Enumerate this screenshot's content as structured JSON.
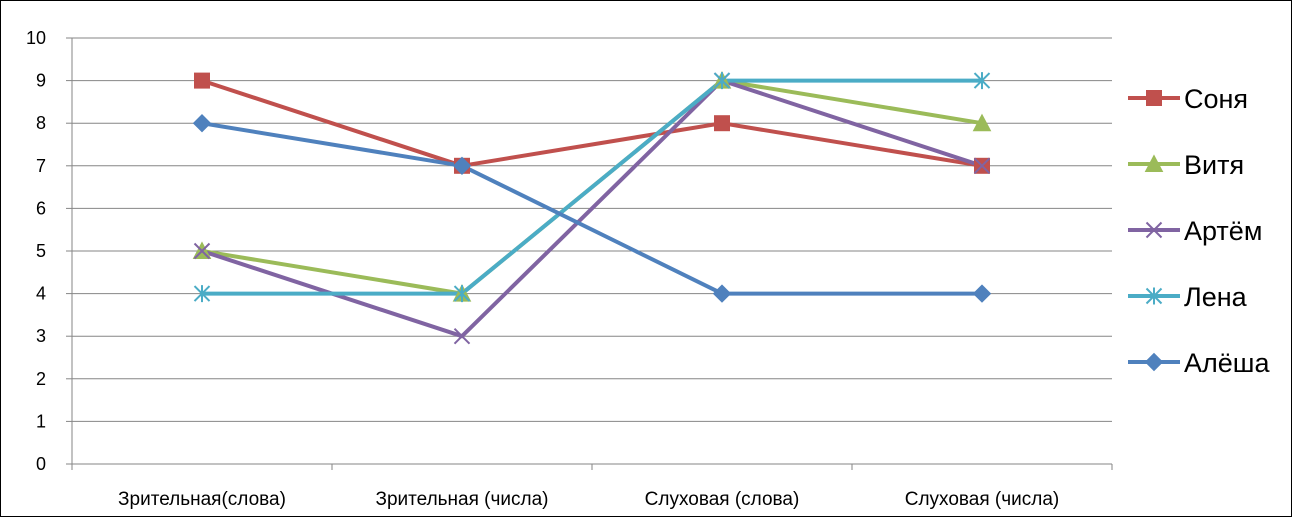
{
  "chart_data": {
    "type": "line",
    "title": "",
    "xlabel": "",
    "ylabel": "",
    "categories": [
      "Зрительная(слова)",
      "Зрительная (числа)",
      "Слуховая (слова)",
      "Слуховая (числа)"
    ],
    "ylim": [
      0,
      10
    ],
    "yticks": [
      0,
      1,
      2,
      3,
      4,
      5,
      6,
      7,
      8,
      9,
      10
    ],
    "grid": true,
    "legend": "right",
    "series": [
      {
        "name": "Соня",
        "values": [
          9,
          7,
          8,
          7
        ],
        "color": "#C0504D",
        "marker": "square"
      },
      {
        "name": "Витя",
        "values": [
          5,
          4,
          9,
          8
        ],
        "color": "#9BBB59",
        "marker": "triangle"
      },
      {
        "name": "Артём",
        "values": [
          5,
          3,
          9,
          7
        ],
        "color": "#8064A2",
        "marker": "x"
      },
      {
        "name": "Лена",
        "values": [
          4,
          4,
          9,
          9
        ],
        "color": "#4BACC6",
        "marker": "star"
      },
      {
        "name": "Алёша",
        "values": [
          8,
          7,
          4,
          4
        ],
        "color": "#4F81BD",
        "marker": "diamond"
      }
    ]
  }
}
